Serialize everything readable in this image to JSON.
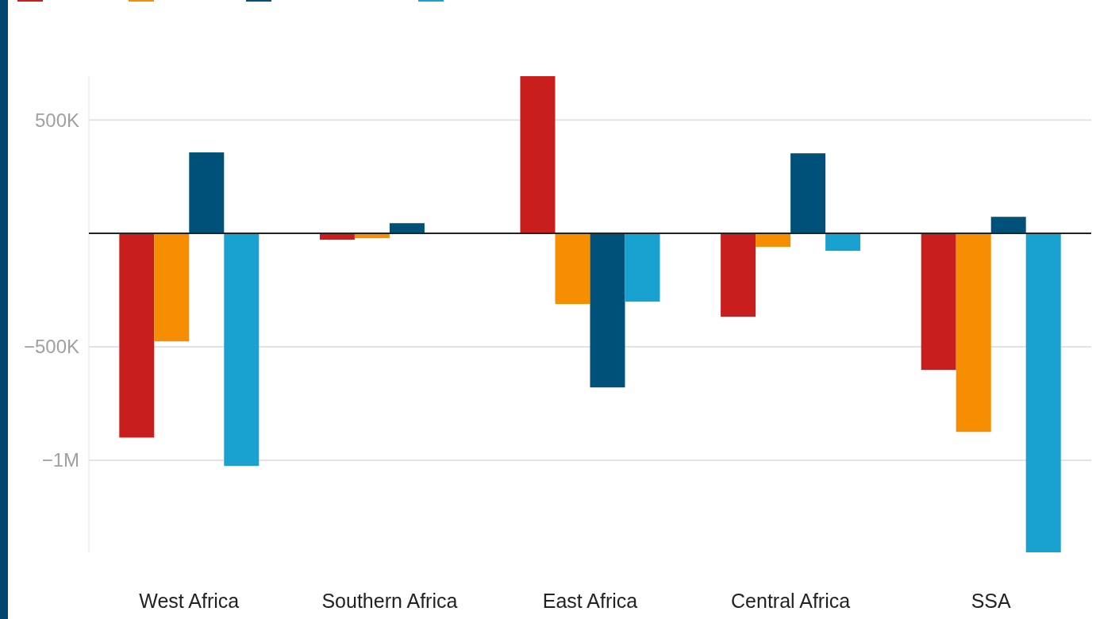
{
  "chart_data": {
    "type": "bar",
    "categories": [
      "West Africa",
      "Southern Africa",
      "East Africa",
      "Central Africa",
      "SSA"
    ],
    "series": [
      {
        "color": "#c81e1e",
        "values": [
          -900000,
          -28000,
          693000,
          -367000,
          -602000
        ]
      },
      {
        "color": "#f78d00",
        "values": [
          -476000,
          -21000,
          -311000,
          -59000,
          -875000
        ]
      },
      {
        "color": "#00517a",
        "values": [
          357000,
          45000,
          -679000,
          353000,
          73000
        ]
      },
      {
        "color": "#19a2cf",
        "values": [
          -1025000,
          null,
          -301000,
          -77000,
          -1406000
        ]
      }
    ],
    "ylim": [
      -1406000,
      693000
    ],
    "yticks": [
      {
        "value": 500000,
        "label": "500K"
      },
      {
        "value": -500000,
        "label": "−500K"
      },
      {
        "value": -1000000,
        "label": "−1M"
      }
    ],
    "grid": "y"
  }
}
